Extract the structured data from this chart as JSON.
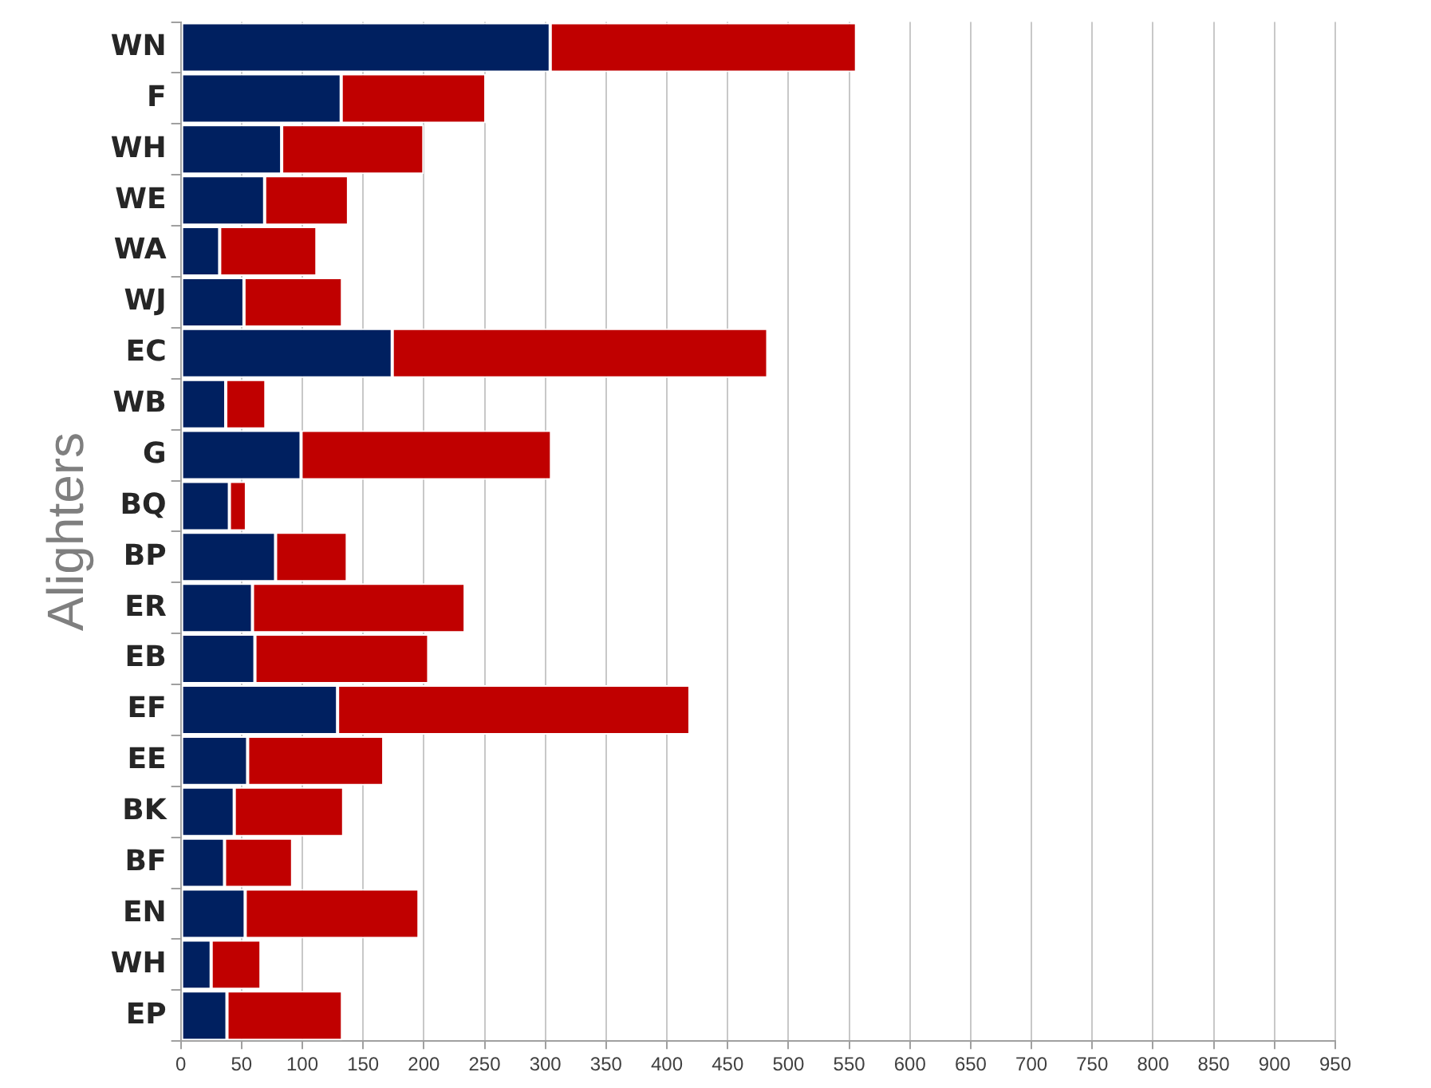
{
  "chart_data": {
    "type": "bar",
    "orientation": "horizontal",
    "stacked": true,
    "ylabel": "Alighters",
    "categories": [
      "WN",
      "F",
      "WH",
      "WE",
      "WA",
      "WJ",
      "EC",
      "WB",
      "G",
      "BQ",
      "BP",
      "ER",
      "EB",
      "EF",
      "EE",
      "BK",
      "BF",
      "EN",
      "WH",
      "EP"
    ],
    "series": [
      {
        "color": "#002060",
        "values": [
          304,
          132,
          83,
          69,
          32,
          52,
          174,
          37,
          99,
          40,
          78,
          59,
          61,
          129,
          55,
          44,
          36,
          53,
          25,
          38
        ]
      },
      {
        "color": "#c00000",
        "values": [
          252,
          119,
          117,
          69,
          80,
          81,
          309,
          33,
          206,
          14,
          59,
          175,
          143,
          290,
          112,
          90,
          56,
          143,
          41,
          95
        ]
      }
    ],
    "xlim": [
      0,
      950
    ],
    "xticks": [
      0,
      50,
      100,
      150,
      200,
      250,
      300,
      350,
      400,
      450,
      500,
      550,
      600,
      650,
      700,
      750,
      800,
      850,
      900,
      950
    ],
    "grid": "x",
    "legend": false
  }
}
